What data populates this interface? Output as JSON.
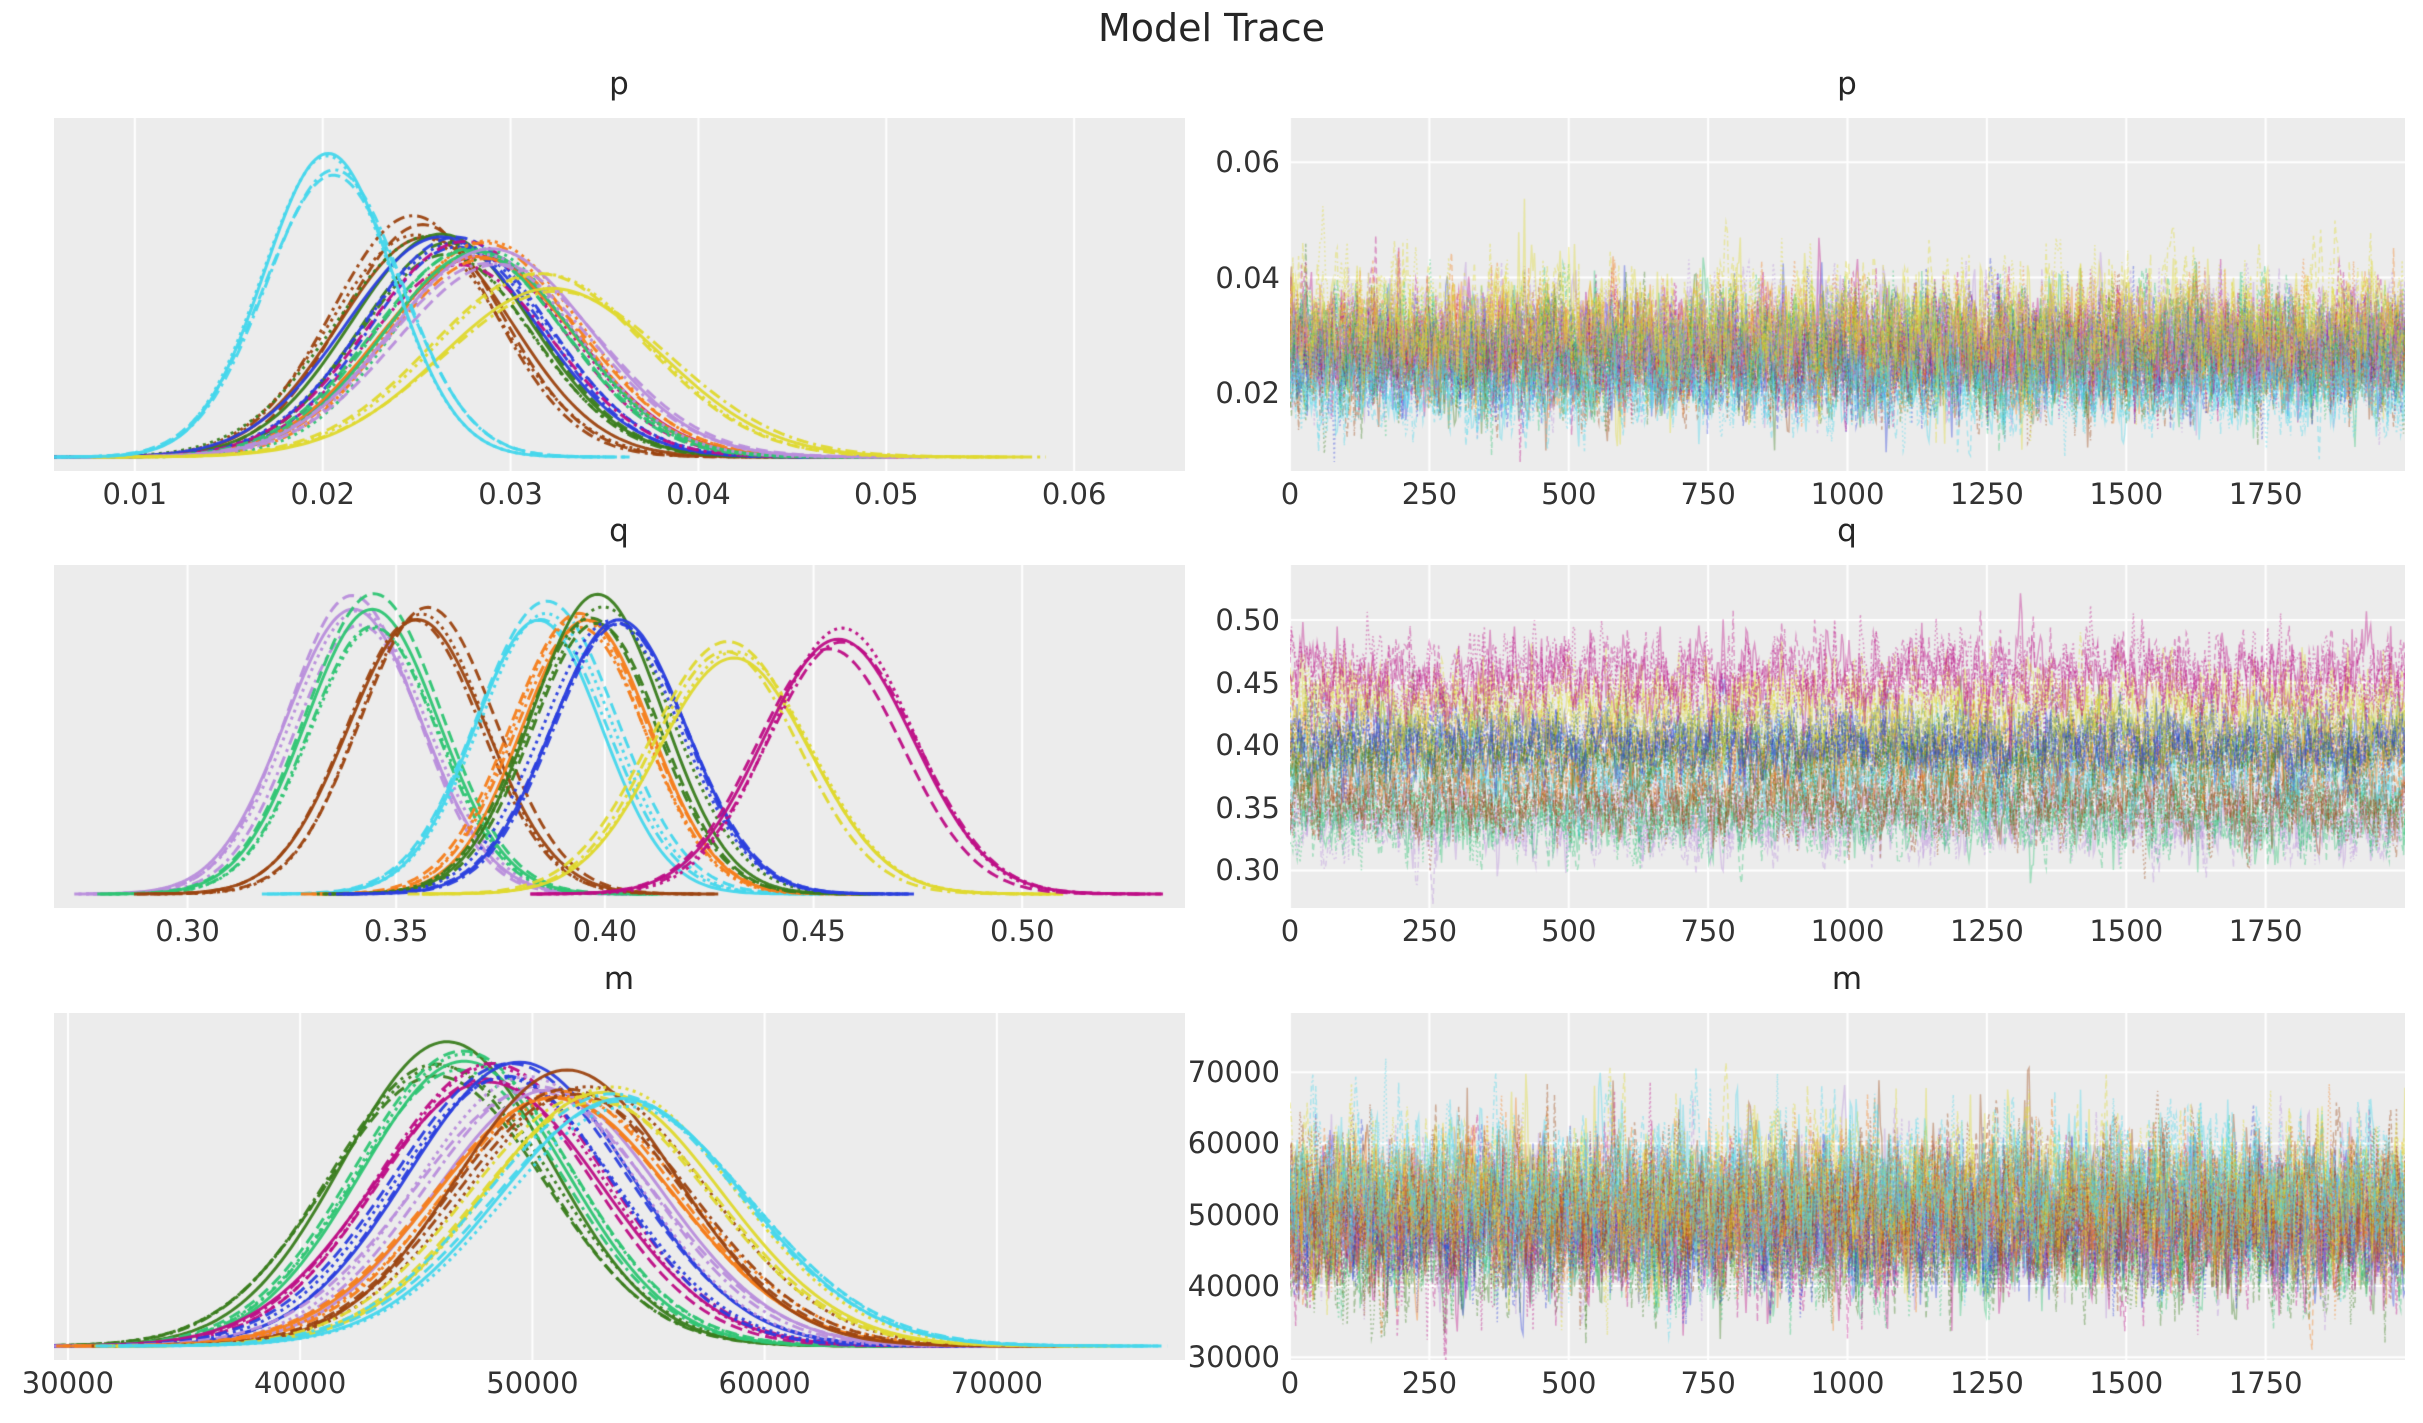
{
  "title": "Model Trace",
  "style": {
    "panel_bg": "#ECECEC",
    "grid_color": "#FFFFFF",
    "text_color": "#262626",
    "tick_color": "#333333"
  },
  "palette": {
    "brown": "#9C4511",
    "darkgreen": "#3A7D1E",
    "blue": "#2B3FDE",
    "magenta": "#BE0E86",
    "orange": "#F57E1B",
    "springgreen": "#2EC573",
    "plum": "#B98EDC",
    "yellow": "#DFD92F",
    "cyan": "#46D7EC"
  },
  "chart_data": [
    {
      "type": "line",
      "kind": "density+trace",
      "name": "p",
      "chains": 4,
      "iterations": 2000,
      "line_styles": [
        "solid",
        "dashed",
        "dashdot",
        "dotted"
      ],
      "density": {
        "xlim": [
          0.0057,
          0.0659
        ],
        "xticks": [
          0.01,
          0.02,
          0.03,
          0.04,
          0.05,
          0.06
        ],
        "xtick_labels": [
          "0.01",
          "0.02",
          "0.03",
          "0.04",
          "0.05",
          "0.06"
        ]
      },
      "trace": {
        "xlim": [
          0,
          2000
        ],
        "xticks": [
          0,
          250,
          500,
          750,
          1000,
          1250,
          1500,
          1750
        ],
        "xtick_labels": [
          "0",
          "250",
          "500",
          "750",
          "1000",
          "1250",
          "1500",
          "1750"
        ],
        "ylim": [
          0.0064,
          0.0677
        ],
        "yticks": [
          0.02,
          0.04,
          0.06
        ],
        "ytick_labels": [
          "0.02",
          "0.04",
          "0.06"
        ]
      },
      "series": [
        {
          "name": "brown",
          "color": "#9C4511",
          "mu": 0.0253,
          "sigma": 0.0045
        },
        {
          "name": "darkgreen",
          "color": "#3A7D1E",
          "mu": 0.0262,
          "sigma": 0.0048
        },
        {
          "name": "blue",
          "color": "#2B3FDE",
          "mu": 0.0268,
          "sigma": 0.0048
        },
        {
          "name": "magenta",
          "color": "#BE0E86",
          "mu": 0.0278,
          "sigma": 0.005
        },
        {
          "name": "orange",
          "color": "#F57E1B",
          "mu": 0.0287,
          "sigma": 0.005
        },
        {
          "name": "springgreen",
          "color": "#2EC573",
          "mu": 0.0283,
          "sigma": 0.005
        },
        {
          "name": "plum",
          "color": "#B98EDC",
          "mu": 0.0288,
          "sigma": 0.0052
        },
        {
          "name": "yellow",
          "color": "#DFD92F",
          "mu": 0.032,
          "sigma": 0.0058
        },
        {
          "name": "cyan",
          "color": "#46D7EC",
          "mu": 0.0203,
          "sigma": 0.0035
        }
      ]
    },
    {
      "type": "line",
      "kind": "density+trace",
      "name": "q",
      "chains": 4,
      "iterations": 2000,
      "line_styles": [
        "solid",
        "dashed",
        "dashdot",
        "dotted"
      ],
      "density": {
        "xlim": [
          0.268,
          0.539
        ],
        "xticks": [
          0.3,
          0.35,
          0.4,
          0.45,
          0.5
        ],
        "xtick_labels": [
          "0.30",
          "0.35",
          "0.40",
          "0.45",
          "0.50"
        ]
      },
      "trace": {
        "xlim": [
          0,
          2000
        ],
        "xticks": [
          0,
          250,
          500,
          750,
          1000,
          1250,
          1500,
          1750
        ],
        "xtick_labels": [
          "0",
          "250",
          "500",
          "750",
          "1000",
          "1250",
          "1500",
          "1750"
        ],
        "ylim": [
          0.27,
          0.544
        ],
        "yticks": [
          0.3,
          0.35,
          0.4,
          0.45,
          0.5
        ],
        "ytick_labels": [
          "0.30",
          "0.35",
          "0.40",
          "0.45",
          "0.50"
        ]
      },
      "series": [
        {
          "name": "plum",
          "color": "#B98EDC",
          "mu": 0.34,
          "sigma": 0.016
        },
        {
          "name": "springgreen",
          "color": "#2EC573",
          "mu": 0.345,
          "sigma": 0.016
        },
        {
          "name": "brown",
          "color": "#9C4511",
          "mu": 0.356,
          "sigma": 0.016
        },
        {
          "name": "cyan",
          "color": "#46D7EC",
          "mu": 0.385,
          "sigma": 0.016
        },
        {
          "name": "orange",
          "color": "#F57E1B",
          "mu": 0.394,
          "sigma": 0.016
        },
        {
          "name": "darkgreen",
          "color": "#3A7D1E",
          "mu": 0.398,
          "sigma": 0.016
        },
        {
          "name": "blue",
          "color": "#2B3FDE",
          "mu": 0.403,
          "sigma": 0.016
        },
        {
          "name": "yellow",
          "color": "#DFD92F",
          "mu": 0.43,
          "sigma": 0.018
        },
        {
          "name": "magenta",
          "color": "#BE0E86",
          "mu": 0.455,
          "sigma": 0.018
        }
      ]
    },
    {
      "type": "line",
      "kind": "density+trace",
      "name": "m",
      "chains": 4,
      "iterations": 2000,
      "line_styles": [
        "solid",
        "dashed",
        "dashdot",
        "dotted"
      ],
      "density": {
        "xlim": [
          29400,
          78100
        ],
        "xticks": [
          30000,
          40000,
          50000,
          60000,
          70000
        ],
        "xtick_labels": [
          "30000",
          "40000",
          "50000",
          "60000",
          "70000"
        ]
      },
      "trace": {
        "xlim": [
          0,
          2000
        ],
        "xticks": [
          0,
          250,
          500,
          750,
          1000,
          1250,
          1500,
          1750
        ],
        "xtick_labels": [
          "0",
          "250",
          "500",
          "750",
          "1000",
          "1250",
          "1500",
          "1750"
        ],
        "ylim": [
          29600,
          78300
        ],
        "yticks": [
          30000,
          40000,
          50000,
          60000,
          70000
        ],
        "ytick_labels": [
          "30000",
          "40000",
          "50000",
          "60000",
          "70000"
        ]
      },
      "series": [
        {
          "name": "darkgreen",
          "color": "#3A7D1E",
          "mu": 46300,
          "sigma": 4600
        },
        {
          "name": "springgreen",
          "color": "#2EC573",
          "mu": 47200,
          "sigma": 4600
        },
        {
          "name": "magenta",
          "color": "#BE0E86",
          "mu": 48200,
          "sigma": 4800
        },
        {
          "name": "blue",
          "color": "#2B3FDE",
          "mu": 49300,
          "sigma": 4800
        },
        {
          "name": "plum",
          "color": "#B98EDC",
          "mu": 50300,
          "sigma": 5000
        },
        {
          "name": "orange",
          "color": "#F57E1B",
          "mu": 51200,
          "sigma": 5000
        },
        {
          "name": "brown",
          "color": "#9C4511",
          "mu": 52000,
          "sigma": 5000
        },
        {
          "name": "yellow",
          "color": "#DFD92F",
          "mu": 53000,
          "sigma": 5300
        },
        {
          "name": "cyan",
          "color": "#46D7EC",
          "mu": 53600,
          "sigma": 5300
        }
      ]
    }
  ]
}
